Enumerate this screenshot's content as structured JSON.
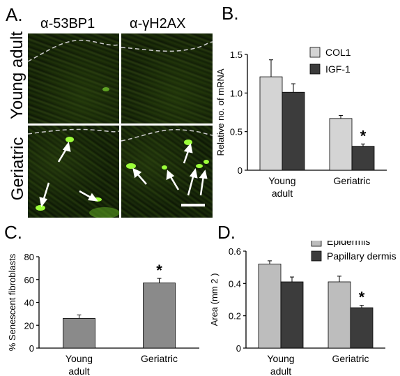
{
  "panel_a": {
    "letter": "A.",
    "col_headers": [
      "α-53BP1",
      "α-γH2AX"
    ],
    "row_labels": [
      "Young adult",
      "Geriatric"
    ]
  },
  "chart_data": [
    {
      "panel": "B.",
      "type": "bar",
      "categories": [
        "Young adult",
        "Geriatric"
      ],
      "category_lines": [
        [
          "Young",
          "adult"
        ],
        [
          "Geriatric"
        ]
      ],
      "series": [
        {
          "name": "COL1",
          "values": [
            1.21,
            0.67
          ],
          "errors": [
            0.22,
            0.04
          ],
          "color": "#d4d4d4"
        },
        {
          "name": "IGF-1",
          "values": [
            1.01,
            0.31
          ],
          "errors": [
            0.11,
            0.03
          ],
          "color": "#3c3c3c"
        }
      ],
      "ylabel": "Relative no. of mRNA",
      "ylim": [
        0,
        1.5
      ],
      "yticks": [
        "0",
        "0.5",
        "1.0",
        "1.5"
      ],
      "annotations": [
        {
          "text": "*",
          "category": 1,
          "series": 1
        }
      ],
      "legend_position": "top-right",
      "grid": false
    },
    {
      "panel": "C.",
      "type": "bar",
      "categories": [
        "Young adult",
        "Geriatric"
      ],
      "category_lines": [
        [
          "Young",
          "adult"
        ],
        [
          "Geriatric"
        ]
      ],
      "series": [
        {
          "values": [
            26,
            57
          ],
          "errors": [
            3,
            4
          ],
          "color": "#8a8a8a"
        }
      ],
      "ylabel": "% Senescent fibroblasts",
      "ylim": [
        0,
        80
      ],
      "yticks": [
        "0",
        "20",
        "40",
        "60",
        "80"
      ],
      "annotations": [
        {
          "text": "*",
          "category": 1,
          "series": 0
        }
      ],
      "grid": false
    },
    {
      "panel": "D.",
      "type": "bar",
      "categories": [
        "Young adult",
        "Geriatric"
      ],
      "category_lines": [
        [
          "Young",
          "adult"
        ],
        [
          "Geriatric"
        ]
      ],
      "series": [
        {
          "name": "Epidermis",
          "values": [
            0.52,
            0.41
          ],
          "errors": [
            0.02,
            0.035
          ],
          "color": "#bdbdbd"
        },
        {
          "name": "Papillary dermis",
          "values": [
            0.41,
            0.25
          ],
          "errors": [
            0.03,
            0.015
          ],
          "color": "#3c3c3c"
        }
      ],
      "ylabel": "Area (mm 2 )",
      "ylim": [
        0,
        0.6
      ],
      "yticks": [
        "0",
        "0.2",
        "0.4",
        "0.6"
      ],
      "annotations": [
        {
          "text": "*",
          "category": 1,
          "series": 1
        }
      ],
      "legend_position": "top-right",
      "grid": false
    }
  ]
}
